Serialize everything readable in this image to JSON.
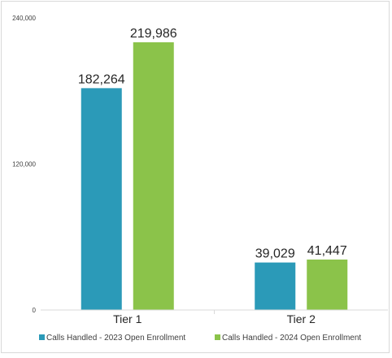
{
  "chart_data": {
    "type": "bar",
    "categories": [
      "Tier 1",
      "Tier 2"
    ],
    "series": [
      {
        "name": "Calls Handled - 2023 Open Enrollment",
        "values": [
          182264,
          39029
        ],
        "labels": [
          "182,264",
          "39,029"
        ],
        "color": "#2b9ab8"
      },
      {
        "name": "Calls Handled - 2024 Open Enrollment",
        "values": [
          219986,
          41447
        ],
        "labels": [
          "219,986",
          "41,447"
        ],
        "color": "#8bc34a"
      }
    ],
    "ylim": [
      0,
      240000
    ],
    "yticks": [
      0,
      120000,
      240000
    ],
    "ytick_labels": [
      "0",
      "120,000",
      "240,000"
    ],
    "grid": false,
    "legend_position": "bottom"
  }
}
